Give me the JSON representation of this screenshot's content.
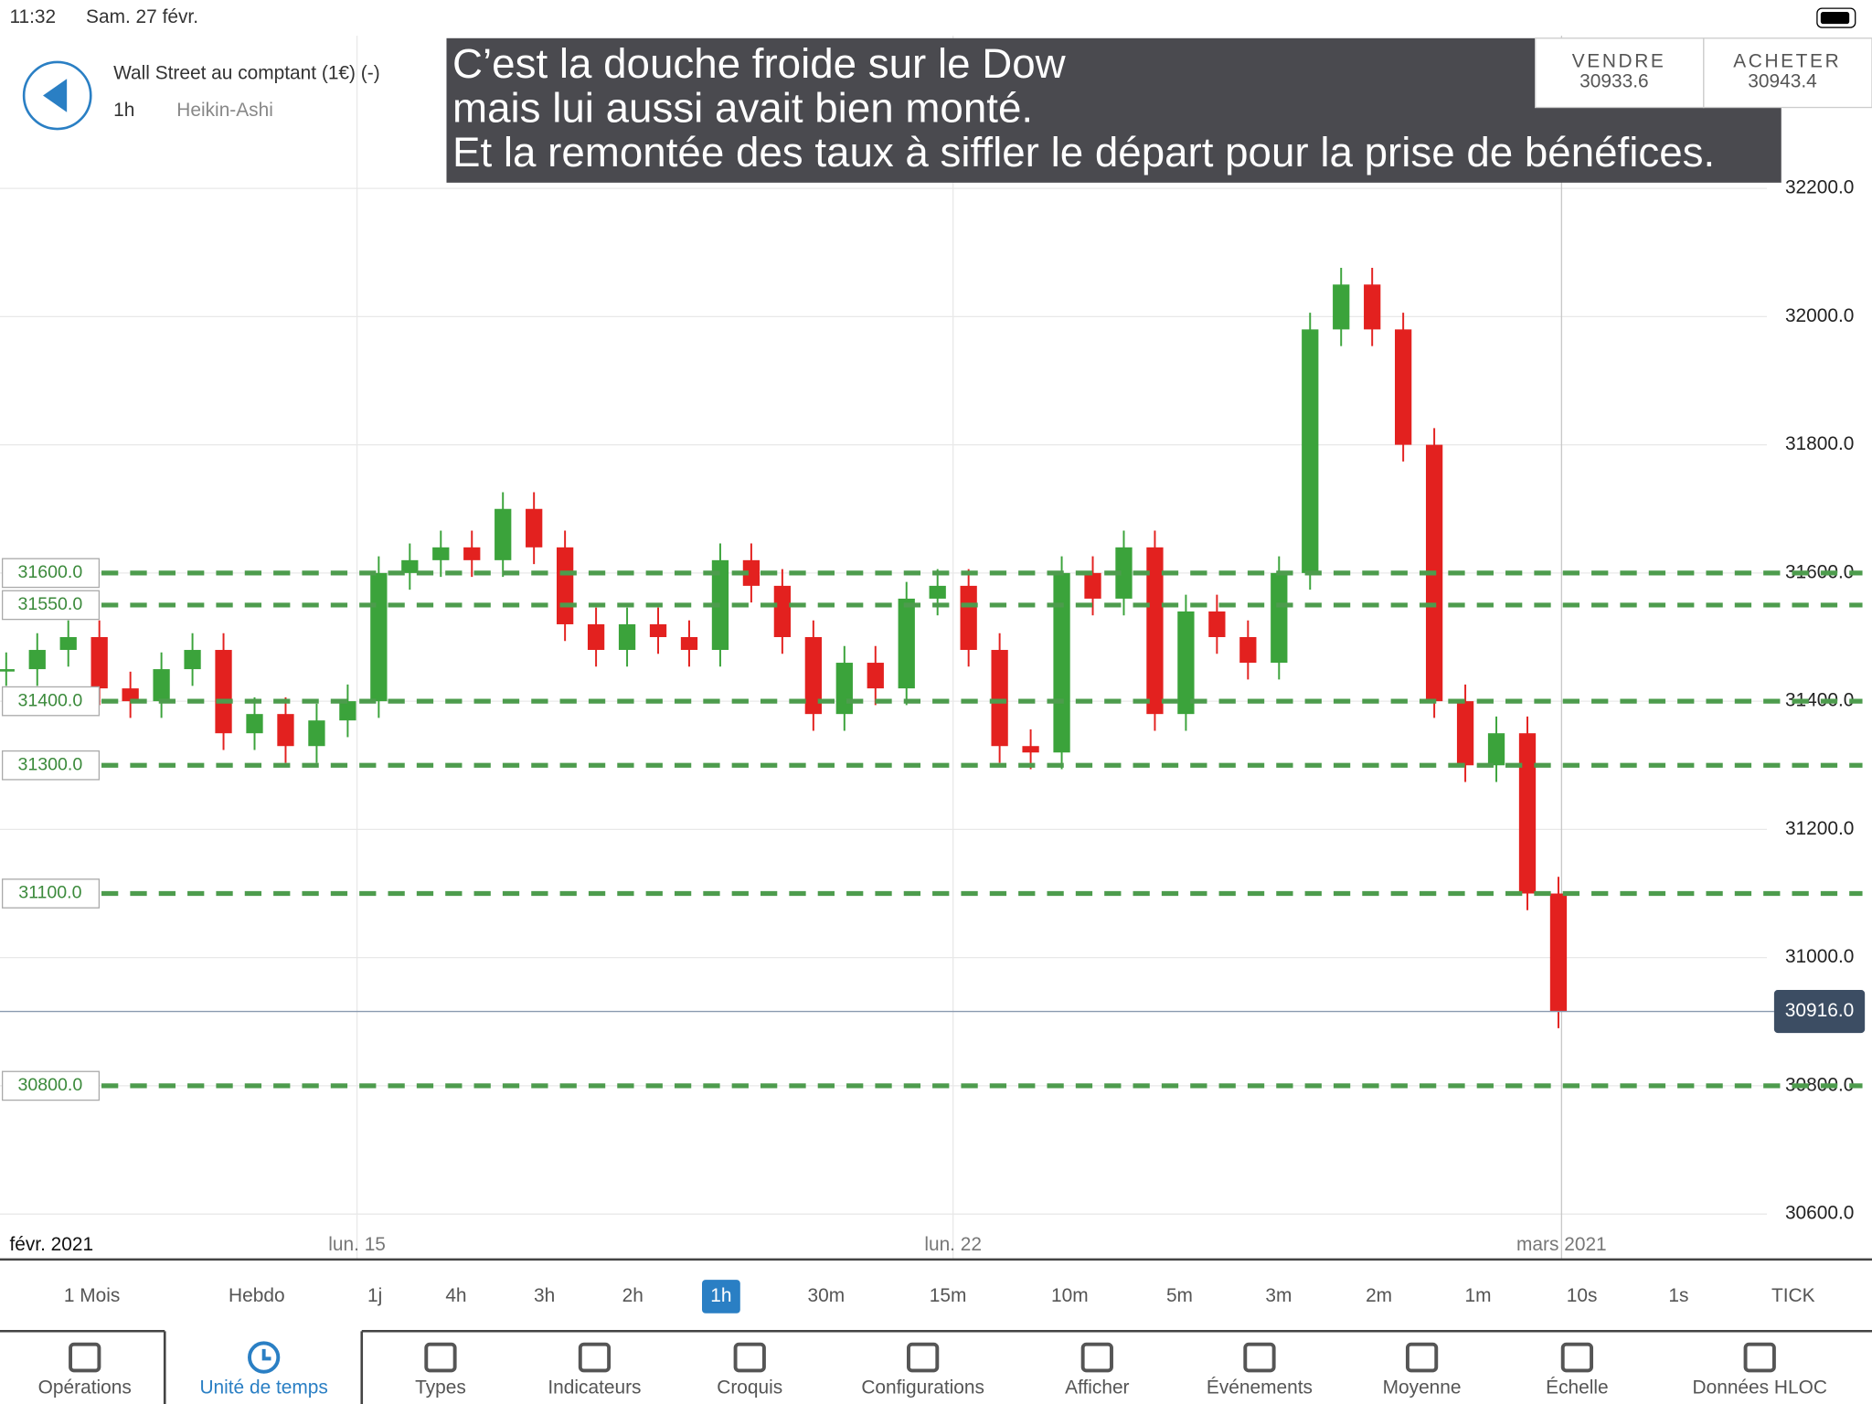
{
  "status_bar": {
    "time": "11:32",
    "date": "Sam. 27 févr."
  },
  "header": {
    "instrument": "Wall Street au comptant (1€) (-)",
    "timeframe": "1h",
    "chart_type": "Heikin-Ashi"
  },
  "annotation": [
    "C’est la douche froide sur le Dow",
    "mais lui aussi avait bien monté.",
    "Et la remontée des taux à siffler le départ pour la prise de bénéfices."
  ],
  "quote": {
    "sell_label": "VENDRE",
    "sell": "30933.6",
    "buy_label": "ACHETER",
    "buy": "30943.4"
  },
  "chart_data": {
    "type": "candlestick",
    "x": [
      0,
      1,
      2,
      3,
      4,
      5,
      6,
      7,
      8,
      9,
      10,
      11,
      12,
      13,
      14,
      15,
      16,
      17,
      18,
      19,
      20,
      21,
      22,
      23,
      24,
      25,
      26,
      27,
      28,
      29,
      30,
      31,
      32,
      33,
      34,
      35,
      36,
      37,
      38,
      39,
      40,
      41,
      42,
      43,
      44,
      45,
      46,
      47,
      48,
      49,
      50
    ],
    "values": [
      31450,
      31480,
      31500,
      31420,
      31400,
      31450,
      31480,
      31350,
      31380,
      31330,
      31370,
      31400,
      31600,
      31620,
      31640,
      31620,
      31700,
      31640,
      31520,
      31480,
      31520,
      31500,
      31480,
      31620,
      31580,
      31500,
      31380,
      31460,
      31420,
      31560,
      31580,
      31480,
      31330,
      31320,
      31600,
      31560,
      31640,
      31380,
      31540,
      31500,
      31460,
      31600,
      31980,
      32050,
      31980,
      31800,
      31400,
      31300,
      31350,
      31100,
      30916
    ],
    "xlim": [
      -0.2,
      60.1
    ],
    "xticks": [
      {
        "value": 0,
        "label": "févr. 2021"
      },
      {
        "value": 11.3,
        "label": "lun. 15"
      },
      {
        "value": 30.5,
        "label": "lun. 22"
      },
      {
        "value": 50.1,
        "label": "mars 2021"
      }
    ],
    "ylim": [
      30529,
      32438
    ],
    "yticks": [
      {
        "value": 30600,
        "label": "30600.0"
      },
      {
        "value": 30800,
        "label": "30800.0"
      },
      {
        "value": 31000,
        "label": "31000.0"
      },
      {
        "value": 31200,
        "label": "31200.0"
      },
      {
        "value": 31400,
        "label": "31400.0"
      },
      {
        "value": 31600,
        "label": "31600.0"
      },
      {
        "value": 31800,
        "label": "31800.0"
      },
      {
        "value": 32000,
        "label": "32000.0"
      },
      {
        "value": 32200,
        "label": "32200.0"
      }
    ],
    "levels": [
      {
        "value": 31600,
        "label": "31600.0"
      },
      {
        "value": 31550,
        "label": "31550.0"
      },
      {
        "value": 31400,
        "label": "31400.0"
      },
      {
        "value": 31300,
        "label": "31300.0"
      },
      {
        "value": 31100,
        "label": "31100.0"
      },
      {
        "value": 30800,
        "label": "30800.0"
      }
    ],
    "current": {
      "value": 30916,
      "label": "30916.0"
    },
    "up_color": "#3ba33b",
    "down_color": "#e3211f",
    "level_color": "#4d9c4d",
    "grid": true
  },
  "timeframes": [
    "1 Mois",
    "Hebdo",
    "1j",
    "4h",
    "3h",
    "2h",
    "1h",
    "30m",
    "15m",
    "10m",
    "5m",
    "3m",
    "2m",
    "1m",
    "10s",
    "1s",
    "TICK"
  ],
  "selected_timeframe": 6,
  "toolbar": [
    "Opérations",
    "Unité de temps",
    "Types",
    "Indicateurs",
    "Croquis",
    "Configurations",
    "Afficher",
    "Événements",
    "Moyenne",
    "Échelle",
    "Données HLOC"
  ],
  "selected_tool": 1
}
